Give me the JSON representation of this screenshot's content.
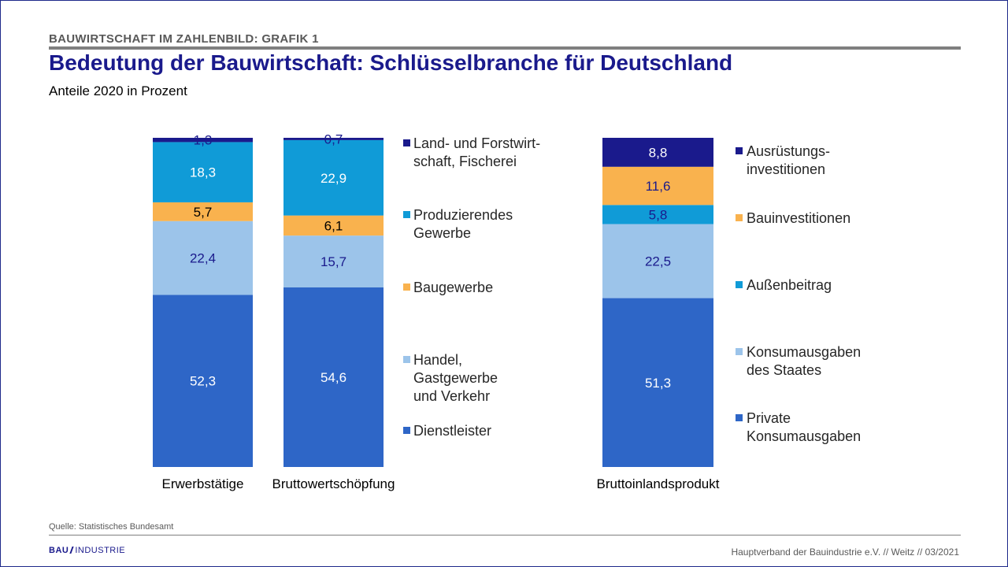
{
  "header": {
    "supertitle": "BAUWIRTSCHAFT IM ZAHLENBILD: GRAFIK 1",
    "title": "Bedeutung der Bauwirtschaft: Schlüsselbranche für Deutschland",
    "subtitle": "Anteile 2020 in Prozent"
  },
  "footer": {
    "source": "Quelle: Statistisches Bundesamt",
    "logo_left": "BAU",
    "logo_right": "INDUSTRIE",
    "credit": "Hauptverband  der Bauindustrie e.V. // Weitz // 03/2021"
  },
  "colors": {
    "navy": "#1a1a8c",
    "cyan": "#109bd7",
    "orange": "#f9b24e",
    "lightblue": "#9cc4ea",
    "blue": "#2e66c7"
  },
  "chart_data": [
    {
      "type": "bar",
      "stacked": true,
      "categories": [
        "Erwerbstätige",
        "Bruttowertschöpfung"
      ],
      "series": [
        {
          "name": "Dienstleister",
          "color": "#2e66c7",
          "label_color": "#ffffff",
          "values": [
            52.3,
            54.6
          ],
          "labels": [
            "52,3",
            "54,6"
          ]
        },
        {
          "name": "Handel, Gastgewerbe und Verkehr",
          "color": "#9cc4ea",
          "label_color": "#1a1a8c",
          "values": [
            22.4,
            15.7
          ],
          "labels": [
            "22,4",
            "15,7"
          ]
        },
        {
          "name": "Baugewerbe",
          "color": "#f9b24e",
          "label_color": "#000000",
          "values": [
            5.7,
            6.1
          ],
          "labels": [
            "5,7",
            "6,1"
          ]
        },
        {
          "name": "Produzierendes Gewerbe",
          "color": "#109bd7",
          "label_color": "#ffffff",
          "values": [
            18.3,
            22.9
          ],
          "labels": [
            "18,3",
            "22,9"
          ]
        },
        {
          "name": "Land- und Forstwirtschaft, Fischerei",
          "color": "#1a1a8c",
          "label_color": "#1a1a8c",
          "values": [
            1.3,
            0.7
          ],
          "labels": [
            "1,3",
            "0,7"
          ]
        }
      ],
      "legend": [
        {
          "lines": [
            "Land- und Forstwirt-",
            "schaft, Fischerei"
          ],
          "color": "#1a1a8c"
        },
        {
          "lines": [
            "Produzierendes",
            "Gewerbe"
          ],
          "color": "#109bd7"
        },
        {
          "lines": [
            "Baugewerbe"
          ],
          "color": "#f9b24e"
        },
        {
          "lines": [
            "Handel,",
            "Gastgewerbe",
            "und Verkehr"
          ],
          "color": "#9cc4ea"
        },
        {
          "lines": [
            "Dienstleister"
          ],
          "color": "#2e66c7"
        }
      ],
      "legend_position": "right"
    },
    {
      "type": "bar",
      "stacked": true,
      "categories": [
        "Bruttoinlandsprodukt"
      ],
      "series": [
        {
          "name": "Private Konsumausgaben",
          "color": "#2e66c7",
          "label_color": "#ffffff",
          "values": [
            51.3
          ],
          "labels": [
            "51,3"
          ]
        },
        {
          "name": "Konsumausgaben des Staates",
          "color": "#9cc4ea",
          "label_color": "#1a1a8c",
          "values": [
            22.5
          ],
          "labels": [
            "22,5"
          ]
        },
        {
          "name": "Außenbeitrag",
          "color": "#109bd7",
          "label_color": "#1a1a8c",
          "values": [
            5.8
          ],
          "labels": [
            "5,8"
          ]
        },
        {
          "name": "Bauinvestitionen",
          "color": "#f9b24e",
          "label_color": "#1a1a8c",
          "values": [
            11.6
          ],
          "labels": [
            "11,6"
          ]
        },
        {
          "name": "Ausrüstungsinvestitionen",
          "color": "#1a1a8c",
          "label_color": "#ffffff",
          "values": [
            8.8
          ],
          "labels": [
            "8,8"
          ]
        }
      ],
      "legend": [
        {
          "lines": [
            "Ausrüstungs-",
            "investitionen"
          ],
          "color": "#1a1a8c"
        },
        {
          "lines": [
            "Bauinvestitionen"
          ],
          "color": "#f9b24e"
        },
        {
          "lines": [
            "Außenbeitrag"
          ],
          "color": "#109bd7"
        },
        {
          "lines": [
            "Konsumausgaben",
            "des Staates"
          ],
          "color": "#9cc4ea"
        },
        {
          "lines": [
            "Private",
            "Konsumausgaben"
          ],
          "color": "#2e66c7"
        }
      ],
      "legend_position": "right"
    }
  ]
}
